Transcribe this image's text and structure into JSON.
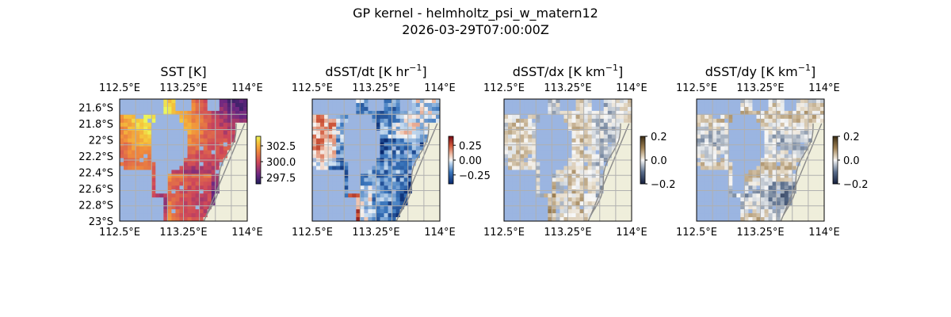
{
  "figure": {
    "title_line1": "GP kernel - helmholtz_psi_w_matern12",
    "title_line2": "2026-03-29T07:00:00Z"
  },
  "colors": {
    "land": "#efeedb",
    "missing": "#9bb5e1",
    "coast": "#8a8a8a",
    "grid": "#b0b0b0"
  },
  "chart_data": [
    {
      "type": "heatmap",
      "title_main": "SST [K]",
      "title_exp": "",
      "title_tail": "",
      "colormap": "thermal",
      "xticks": [
        "112.5°E",
        "113.25°E",
        "114°E"
      ],
      "x_tick_values": [
        112.5,
        113.25,
        114.0
      ],
      "yticks": [
        "21.6°S",
        "21.8°S",
        "22°S",
        "22.2°S",
        "22.4°S",
        "22.6°S",
        "22.8°S",
        "23°S"
      ],
      "y_tick_values": [
        -21.6,
        -21.8,
        -22.0,
        -22.2,
        -22.4,
        -22.6,
        -22.8,
        -23.0
      ],
      "show_yticks": true,
      "xlim": [
        112.5,
        114.0
      ],
      "ylim": [
        -23.0,
        -21.5
      ],
      "colorbar_ticks": [
        "302.5",
        "300.0",
        "297.5"
      ],
      "colorbar_tick_values": [
        302.5,
        300.0,
        297.5
      ],
      "colorbar_range": [
        296.5,
        304.0
      ]
    },
    {
      "type": "heatmap",
      "title_main": "dSST/dt [K hr",
      "title_exp": "−1",
      "title_tail": "]",
      "colormap": "diverging-blue-red",
      "xticks": [
        "112.5°E",
        "113.25°E",
        "114°E"
      ],
      "x_tick_values": [
        112.5,
        113.25,
        114.0
      ],
      "yticks": [],
      "y_tick_values": [],
      "show_yticks": false,
      "xlim": [
        112.5,
        114.0
      ],
      "ylim": [
        -23.0,
        -21.5
      ],
      "colorbar_ticks": [
        "0.25",
        "0.00",
        "−0.25"
      ],
      "colorbar_tick_values": [
        0.25,
        0.0,
        -0.25
      ],
      "colorbar_range": [
        -0.4,
        0.4
      ]
    },
    {
      "type": "heatmap",
      "title_main": "dSST/dx [K km",
      "title_exp": "−1",
      "title_tail": "]",
      "colormap": "diverging-blue-brown",
      "xticks": [
        "112.5°E",
        "113.25°E",
        "114°E"
      ],
      "x_tick_values": [
        112.5,
        113.25,
        114.0
      ],
      "yticks": [],
      "y_tick_values": [],
      "show_yticks": false,
      "xlim": [
        112.5,
        114.0
      ],
      "ylim": [
        -23.0,
        -21.5
      ],
      "colorbar_ticks": [
        "0.2",
        "0.0",
        "−0.2"
      ],
      "colorbar_tick_values": [
        0.2,
        0.0,
        -0.2
      ],
      "colorbar_range": [
        -0.2,
        0.2
      ]
    },
    {
      "type": "heatmap",
      "title_main": "dSST/dy [K km",
      "title_exp": "−1",
      "title_tail": "]",
      "colormap": "diverging-blue-brown",
      "xticks": [
        "112.5°E",
        "113.25°E",
        "114°E"
      ],
      "x_tick_values": [
        112.5,
        113.25,
        114.0
      ],
      "yticks": [],
      "y_tick_values": [],
      "show_yticks": false,
      "xlim": [
        112.5,
        114.0
      ],
      "ylim": [
        -23.0,
        -21.5
      ],
      "colorbar_ticks": [
        "0.2",
        "0.0",
        "−0.2"
      ],
      "colorbar_tick_values": [
        0.2,
        0.0,
        -0.2
      ],
      "colorbar_range": [
        -0.2,
        0.2
      ]
    }
  ]
}
